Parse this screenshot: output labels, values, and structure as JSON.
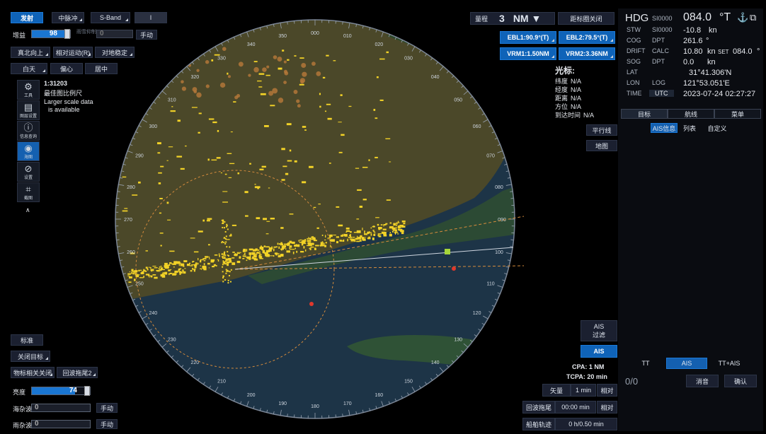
{
  "top_left": {
    "transmit": "发射",
    "pulse": "中脉冲",
    "band": "S-Band",
    "blank": "I"
  },
  "gain": {
    "label": "增益",
    "value": "98",
    "fill": 0.98
  },
  "sea_row": {
    "label": "雨雪抑制",
    "value": "0",
    "manual": "手动"
  },
  "modes": {
    "north_up": "真北向上",
    "relative_motion": "相对运动(R)",
    "stabilize": "对地稳定"
  },
  "display_row": {
    "day": "白天",
    "offset": "偏心",
    "center": "居中"
  },
  "chart_info": {
    "scale": "1:31203",
    "scale_note": "最佳图比例尺",
    "larger1": "Larger scale data",
    "larger2": "is available"
  },
  "side_icons": [
    {
      "name": "tools-icon",
      "glyph": "⚙",
      "label": "工具"
    },
    {
      "name": "layers-icon",
      "glyph": "▤",
      "label": "图层设置"
    },
    {
      "name": "info-icon",
      "glyph": "ⓘ",
      "label": "信息查询"
    },
    {
      "name": "globe-icon",
      "glyph": "◉",
      "label": "海图"
    },
    {
      "name": "disabled-icon",
      "glyph": "⊘",
      "label": "设置"
    },
    {
      "name": "crop-icon",
      "glyph": "⌗",
      "label": "截图"
    }
  ],
  "collapse": "∧",
  "bottom_left": {
    "standard": "标准",
    "close_target": "关闭目标",
    "tgt_assoc": "物标相关关闭",
    "echo_trail": "回波拖尾2",
    "brightness_label": "亮度",
    "brightness_value": "74",
    "brightness_fill": 0.74,
    "rain_label": "海杂波",
    "rain_value": "0",
    "rain_manual": "手动",
    "sea_label": "雨杂波",
    "sea_value": "0",
    "sea_manual": "手动"
  },
  "range": {
    "label": "量程",
    "value": "3",
    "unit": "NM ▼",
    "rings": "距标圈关闭"
  },
  "ebl_vrm": {
    "ebl1": "EBL1:90.9°(T)",
    "ebl2": "EBL2:79.5°(T)",
    "vrm1": "VRM1:1.50NM",
    "vrm2": "VRM2:3.36NM"
  },
  "cursor": {
    "title": "光标:",
    "rows": [
      {
        "k": "纬度",
        "v": "N/A"
      },
      {
        "k": "经度",
        "v": "N/A"
      },
      {
        "k": "距离",
        "v": "N/A"
      },
      {
        "k": "方位",
        "v": "N/A"
      },
      {
        "k": "到达时间",
        "v": "N/A"
      }
    ]
  },
  "parallel": "平行线",
  "chart_btn": "地图",
  "ais_filter": {
    "l1": "AIS",
    "l2": "过滤"
  },
  "ais_btn": "AIS",
  "cpa": {
    "cpa": "CPA:  1  NM",
    "tcpa": "TCPA:  20  min"
  },
  "vector": {
    "label": "矢量",
    "value": "1   min",
    "mode": "相对"
  },
  "trail": {
    "label": "回波拖尾",
    "value": "00:00  min",
    "mode": "相对"
  },
  "past_track": {
    "label": "船舶轨迹",
    "value": "0  h/0.50  min"
  },
  "bearing_labels": [
    "000",
    "010",
    "020",
    "030",
    "040",
    "050",
    "060",
    "070",
    "080",
    "090",
    "100",
    "110",
    "120",
    "130",
    "140",
    "150",
    "160",
    "170",
    "180",
    "190",
    "200",
    "210",
    "220",
    "230",
    "240",
    "250",
    "260",
    "270",
    "280",
    "290",
    "300",
    "310",
    "320",
    "330",
    "340",
    "350"
  ],
  "nav": {
    "hdg_label": "HDG",
    "hdg_src": "SI0000",
    "hdg_val": "084.0",
    "hdg_unit": "°T",
    "stw_label": "STW",
    "stw_src": "SI0000",
    "stw_val": "-10.8",
    "stw_unit": "kn",
    "cog_label": "COG",
    "cog_src": "DPT",
    "cog_val": "261.6",
    "cog_unit": "°",
    "drift_label": "DRIFT",
    "drift_src": "CALC",
    "drift_val": "10.80",
    "drift_unit": "kn",
    "set_label": "SET",
    "set_val": "084.0",
    "set_unit": "°",
    "sog_label": "SOG",
    "sog_src": "DPT",
    "sog_val": "0.0",
    "sog_unit": "kn",
    "lat_label": "LAT",
    "lat_val": "31°41.306'N",
    "lon_label": "LON",
    "lon_src": "LOG",
    "lon_val": "121°53.051'E",
    "time_label": "TIME",
    "time_src": "UTC",
    "time_val": "2023-07-24 02:27:27"
  },
  "right_tabs": [
    "目标",
    "航线",
    "菜单"
  ],
  "right_subtabs": [
    "AIS信息",
    "列表",
    "自定义"
  ],
  "tt_tabs": [
    "TT",
    "AIS",
    "TT+AIS"
  ],
  "alarm": {
    "count": "0/0",
    "mute": "消音",
    "ack": "确认"
  },
  "colors": {
    "accent": "#0f63b8",
    "land": "#4a4a2a",
    "sea": "#1c3446",
    "echo": "#f2d227"
  }
}
